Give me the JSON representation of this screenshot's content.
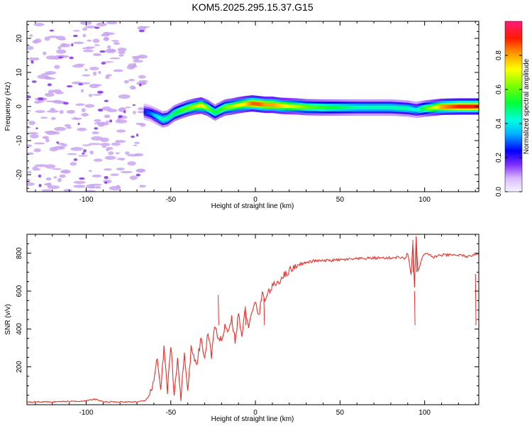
{
  "title": "KOM5.2025.295.15.37.G15",
  "colors": {
    "snr_line": "#e8302a",
    "noise_purple": "#c9a4f0",
    "noise_dark": "#7a28e6",
    "frame": "#000000"
  },
  "chart_data": [
    {
      "type": "heatmap",
      "title": "KOM5.2025.295.15.37.G15",
      "xlabel": "Height of straight line (km)",
      "ylabel": "Frequency (Hz)",
      "xlim": [
        -135,
        132
      ],
      "ylim": [
        -25,
        25
      ],
      "x_ticks": [
        -100,
        -50,
        0,
        50,
        100
      ],
      "x_tick_labels": [
        "-100",
        "-50",
        "0",
        "50",
        "100"
      ],
      "y_ticks": [
        -20,
        -10,
        0,
        10,
        20
      ],
      "y_tick_labels": [
        "-20",
        "-10",
        "0",
        "10",
        "20"
      ],
      "noise_region_x": [
        -135,
        -65
      ],
      "signal_trace": {
        "x": [
          -66,
          -62,
          -58,
          -55,
          -52,
          -48,
          -44,
          -40,
          -36,
          -32,
          -28,
          -24,
          -21,
          -18,
          -14,
          -10,
          -6,
          -2,
          2,
          6,
          10,
          15,
          20,
          25,
          30,
          40,
          50,
          60,
          70,
          80,
          90,
          95,
          100,
          110,
          120,
          132
        ],
        "y": [
          -1.5,
          -2.0,
          -3.0,
          -3.8,
          -3.5,
          -2.0,
          -1.2,
          -0.5,
          0.0,
          0.3,
          -0.5,
          -1.8,
          -1.0,
          -0.3,
          0.0,
          0.4,
          0.7,
          0.9,
          0.7,
          0.5,
          0.5,
          0.2,
          0.1,
          0.0,
          -0.2,
          -0.3,
          -0.3,
          -0.3,
          -0.3,
          -0.3,
          -0.6,
          -1.0,
          -0.6,
          -0.1,
          0.0,
          0.0
        ],
        "amplitude": [
          0.25,
          0.3,
          0.4,
          0.45,
          0.45,
          0.5,
          0.55,
          0.6,
          0.65,
          0.75,
          0.6,
          0.5,
          0.55,
          0.6,
          0.65,
          0.7,
          0.75,
          0.85,
          0.85,
          0.8,
          0.8,
          0.75,
          0.7,
          0.65,
          0.6,
          0.55,
          0.5,
          0.45,
          0.45,
          0.45,
          0.45,
          0.4,
          0.55,
          0.8,
          0.9,
          0.9
        ]
      },
      "colorbar": {
        "label": "Normalized spectral amplitude",
        "range": [
          0,
          1
        ],
        "ticks": [
          0.0,
          0.2,
          0.4,
          0.6,
          0.8
        ],
        "tick_labels": [
          "0.0",
          "0.2",
          "0.4",
          "0.6",
          "0.8"
        ]
      }
    },
    {
      "type": "line",
      "title": "",
      "xlabel": "Height of straight line (km)",
      "ylabel": "SNR (v/v)",
      "xlim": [
        -135,
        132
      ],
      "ylim": [
        0,
        900
      ],
      "x_ticks": [
        -100,
        -50,
        0,
        50,
        100
      ],
      "x_tick_labels": [
        "-100",
        "-50",
        "0",
        "50",
        "100"
      ],
      "y_ticks": [
        200,
        400,
        600,
        800
      ],
      "y_tick_labels": [
        "200",
        "400",
        "600",
        "800"
      ],
      "series": [
        {
          "name": "SNR",
          "x": [
            -135,
            -120,
            -100,
            -95,
            -90,
            -80,
            -70,
            -65,
            -62,
            -60,
            -58,
            -56,
            -54,
            -52,
            -50,
            -48,
            -46,
            -44,
            -42,
            -40,
            -38,
            -35,
            -32,
            -30,
            -28,
            -26,
            -24,
            -22,
            -20,
            -18,
            -16,
            -14,
            -12,
            -10,
            -8,
            -6,
            -4,
            -2,
            0,
            2,
            4,
            6,
            8,
            10,
            12,
            14,
            16,
            18,
            20,
            22,
            25,
            30,
            35,
            40,
            50,
            60,
            70,
            80,
            85,
            88,
            90,
            92,
            93,
            94,
            95,
            96,
            98,
            100,
            105,
            110,
            120,
            128,
            130,
            132
          ],
          "y": [
            15,
            15,
            20,
            30,
            15,
            15,
            15,
            20,
            60,
            120,
            260,
            80,
            300,
            60,
            320,
            40,
            250,
            30,
            280,
            60,
            300,
            200,
            350,
            240,
            380,
            260,
            420,
            330,
            350,
            420,
            380,
            460,
            330,
            480,
            360,
            500,
            420,
            480,
            540,
            470,
            580,
            560,
            600,
            620,
            640,
            650,
            680,
            690,
            710,
            720,
            740,
            750,
            760,
            760,
            765,
            770,
            775,
            775,
            780,
            770,
            800,
            690,
            850,
            620,
            880,
            700,
            760,
            800,
            780,
            790,
            790,
            780,
            800,
            800
          ]
        }
      ],
      "notes": {
        "spikes": [
          {
            "x": -22,
            "y": 580
          },
          {
            "x": -6,
            "y": 520
          },
          {
            "x": 5,
            "y": 560
          },
          {
            "x": 93,
            "y": 870
          },
          {
            "x": 94,
            "y": 600
          },
          {
            "x": 95,
            "y": 890
          },
          {
            "x": 130,
            "y": 690
          }
        ]
      }
    }
  ]
}
